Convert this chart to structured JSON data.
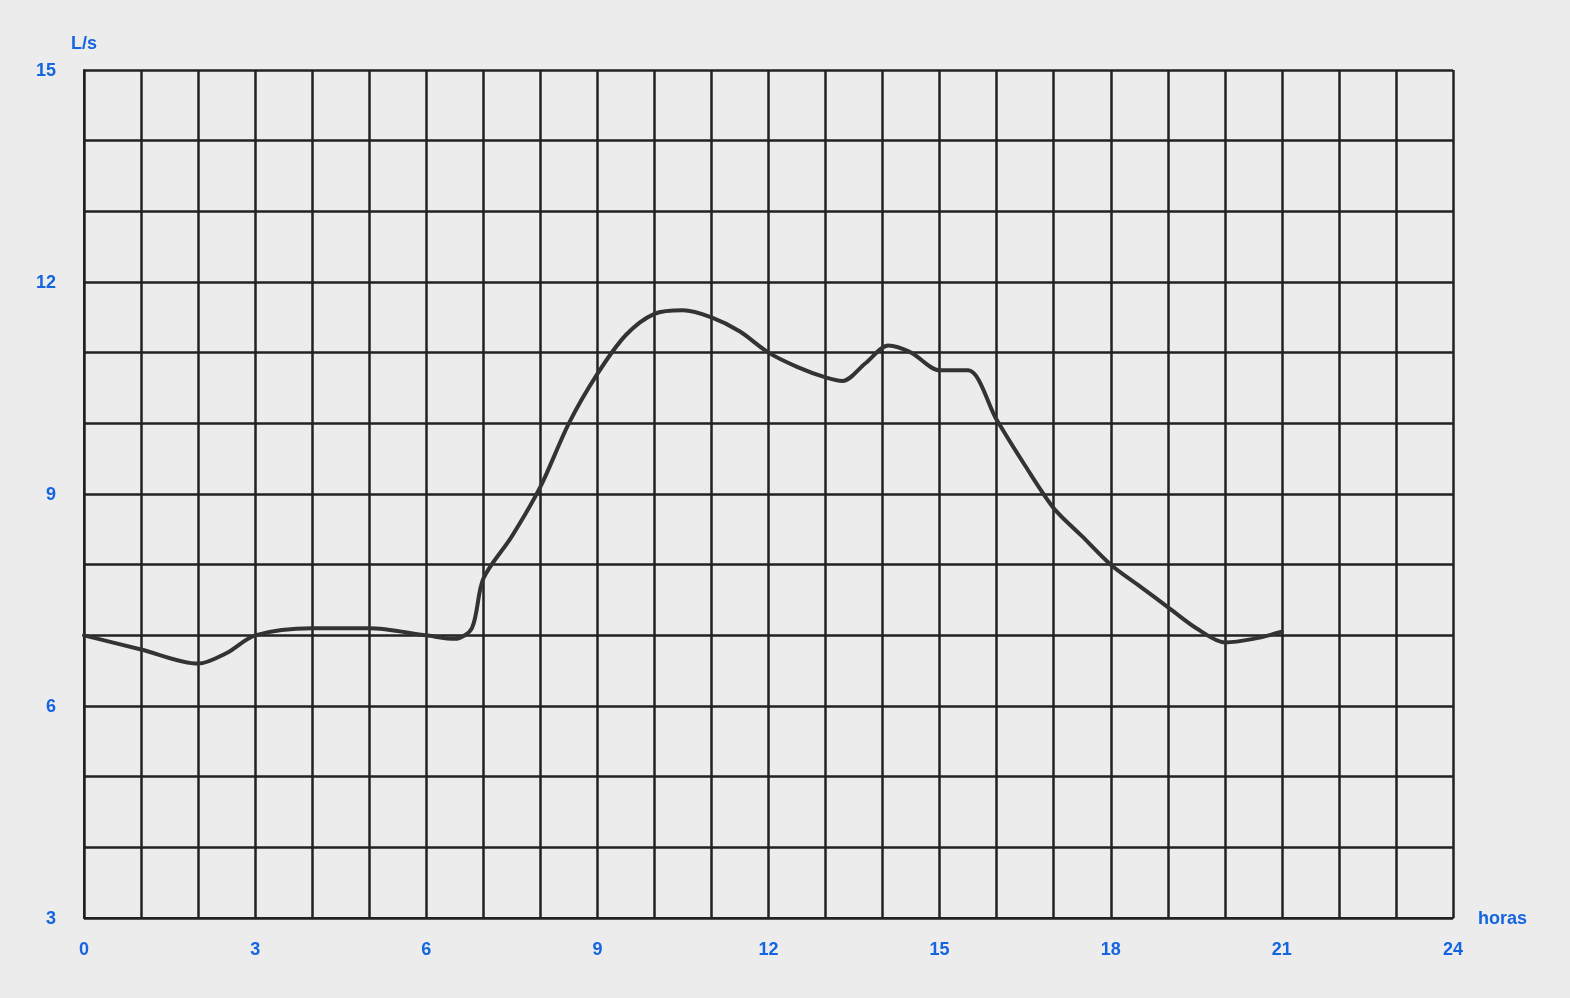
{
  "chart_data": {
    "type": "line",
    "xlabel": "horas",
    "ylabel": "L/s",
    "x": [
      0,
      1,
      2,
      2.5,
      3,
      4,
      5,
      6,
      6.5,
      6.8,
      7,
      7.5,
      8,
      8.5,
      9,
      9.5,
      10,
      10.5,
      11,
      11.5,
      12,
      12.5,
      13,
      13.3,
      13.7,
      14.1,
      14.5,
      15,
      15.5,
      16,
      16.5,
      17,
      17.5,
      18,
      18.5,
      19,
      19.5,
      20,
      20.5,
      21
    ],
    "series": [
      {
        "color": "#333333",
        "values": [
          7.0,
          6.8,
          6.6,
          6.75,
          7.0,
          7.1,
          7.1,
          7.0,
          6.95,
          7.1,
          7.8,
          8.4,
          9.1,
          10.0,
          10.7,
          11.25,
          11.55,
          11.6,
          11.5,
          11.3,
          11.0,
          10.8,
          10.65,
          10.6,
          10.85,
          11.1,
          11.0,
          10.75,
          10.75,
          10.05,
          9.4,
          8.8,
          8.4,
          8.0,
          7.7,
          7.4,
          7.1,
          6.9,
          6.95,
          7.05
        ]
      }
    ],
    "xlim": [
      0,
      24
    ],
    "xticks": [
      0,
      {
        "value": 1,
        "label": null
      },
      {
        "value": 2,
        "label": null
      },
      3,
      {
        "value": 4,
        "label": null
      },
      {
        "value": 5,
        "label": null
      },
      6,
      {
        "value": 7,
        "label": null
      },
      {
        "value": 8,
        "label": null
      },
      9,
      {
        "value": 10,
        "label": null
      },
      {
        "value": 11,
        "label": null
      },
      12,
      {
        "value": 13,
        "label": null
      },
      {
        "value": 14,
        "label": null
      },
      15,
      {
        "value": 16,
        "label": null
      },
      {
        "value": 17,
        "label": null
      },
      18,
      {
        "value": 19,
        "label": null
      },
      {
        "value": 20,
        "label": null
      },
      21,
      {
        "value": 22,
        "label": null
      },
      {
        "value": 23,
        "label": null
      },
      24
    ],
    "ylim": [
      3,
      15
    ],
    "yticks": [
      3,
      {
        "value": 4,
        "label": null
      },
      {
        "value": 5,
        "label": null
      },
      6,
      {
        "value": 7,
        "label": null
      },
      {
        "value": 8,
        "label": null
      },
      9,
      {
        "value": 10,
        "label": null
      },
      {
        "value": 11,
        "label": null
      },
      12,
      {
        "value": 13,
        "label": null
      },
      {
        "value": 14,
        "label": null
      },
      15
    ],
    "grid": true,
    "marker": "none",
    "line_style": "solid"
  }
}
